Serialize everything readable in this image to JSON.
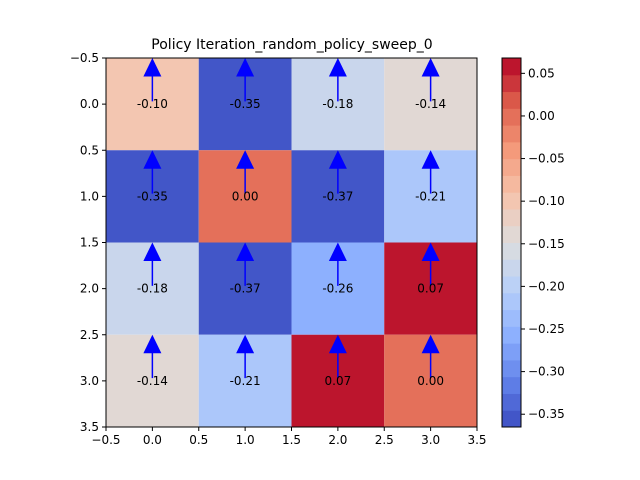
{
  "chart_data": {
    "type": "heatmap",
    "title": "Policy Iteration_random_policy_sweep_0",
    "xlabel": "",
    "ylabel": "",
    "xlim": [
      -0.5,
      3.5
    ],
    "ylim": [
      3.5,
      -0.5
    ],
    "x_ticks": [
      -0.5,
      0.0,
      0.5,
      1.0,
      1.5,
      2.0,
      2.5,
      3.0,
      3.5
    ],
    "y_ticks": [
      -0.5,
      0.0,
      0.5,
      1.0,
      1.5,
      2.0,
      2.5,
      3.0,
      3.5
    ],
    "x_tick_labels": [
      "−0.5",
      "0.0",
      "0.5",
      "1.0",
      "1.5",
      "2.0",
      "2.5",
      "3.0",
      "3.5"
    ],
    "y_tick_labels": [
      "−0.5",
      "0.0",
      "0.5",
      "1.0",
      "1.5",
      "2.0",
      "2.5",
      "3.0",
      "3.5"
    ],
    "values": [
      [
        -0.1,
        -0.35,
        -0.18,
        -0.14
      ],
      [
        -0.35,
        0.0,
        -0.37,
        -0.21
      ],
      [
        -0.18,
        -0.37,
        -0.26,
        0.07
      ],
      [
        -0.14,
        -0.21,
        0.07,
        0.0
      ]
    ],
    "value_labels": [
      [
        "-0.10",
        "-0.35",
        "-0.18",
        "-0.14"
      ],
      [
        "-0.35",
        "0.00",
        "-0.37",
        "-0.21"
      ],
      [
        "-0.18",
        "-0.37",
        "-0.26",
        "0.07"
      ],
      [
        "-0.14",
        "-0.21",
        "0.07",
        "0.00"
      ]
    ],
    "policy_arrows": [
      [
        "up",
        "up",
        "up",
        "up"
      ],
      [
        "up",
        "up",
        "up",
        "up"
      ],
      [
        "up",
        "up",
        "up",
        "up"
      ],
      [
        "up",
        "up",
        "up",
        "up"
      ]
    ],
    "arrow_color": "#0000ff",
    "colormap": "coolwarm",
    "colorbar": {
      "vmin": -0.365,
      "vmax": 0.068,
      "ticks": [
        -0.35,
        -0.3,
        -0.25,
        -0.2,
        -0.15,
        -0.1,
        -0.05,
        0.0,
        0.05
      ],
      "tick_labels": [
        "−0.35",
        "−0.30",
        "−0.25",
        "−0.20",
        "−0.15",
        "−0.10",
        "−0.05",
        "0.00",
        "0.05"
      ],
      "levels": 22
    },
    "grid": false
  }
}
